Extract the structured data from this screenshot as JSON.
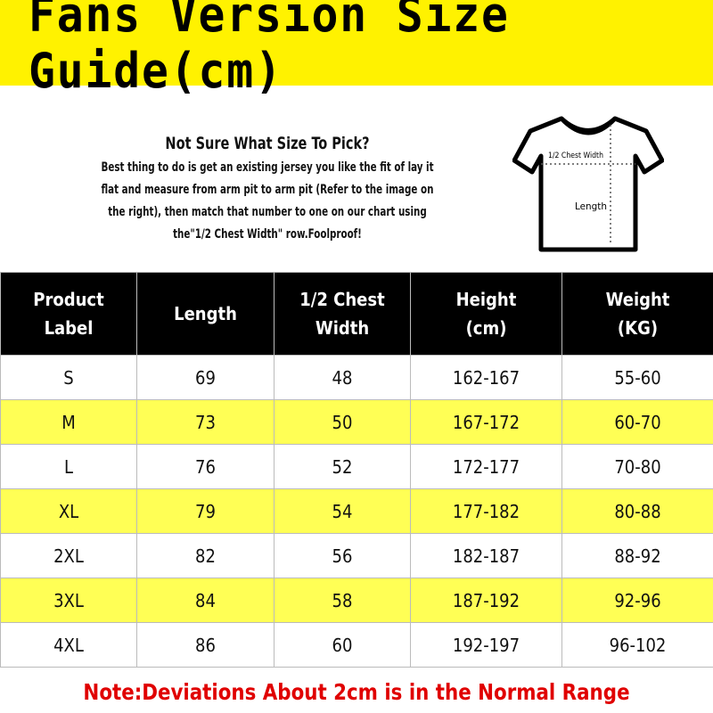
{
  "title": "Fans Version Size Guide(cm)",
  "colors": {
    "banner": "#fff200",
    "row_highlight": "#ffff55",
    "header_bg": "#000000",
    "note": "#e00000"
  },
  "intro": {
    "heading": "Not Sure What Size To Pick?",
    "body": "Best thing to do is get an existing jersey you like the fit of lay it flat and measure from arm pit to arm pit (Refer to the image on the right), then match that number to one on our chart using the\"1/2 Chest Width\" row.Foolproof!"
  },
  "diagram": {
    "chest_label": "1/2 Chest Width",
    "length_label": "Length"
  },
  "table": {
    "headers": [
      "Product\nLabel",
      "Length",
      "1/2 Chest Width",
      "Height\n(cm)",
      "Weight\n(KG)"
    ],
    "rows": [
      [
        "S",
        "69",
        "48",
        "162-167",
        "55-60"
      ],
      [
        "M",
        "73",
        "50",
        "167-172",
        "60-70"
      ],
      [
        "L",
        "76",
        "52",
        "172-177",
        "70-80"
      ],
      [
        "XL",
        "79",
        "54",
        "177-182",
        "80-88"
      ],
      [
        "2XL",
        "82",
        "56",
        "182-187",
        "88-92"
      ],
      [
        "3XL",
        "84",
        "58",
        "187-192",
        "92-96"
      ],
      [
        "4XL",
        "86",
        "60",
        "192-197",
        "96-102"
      ]
    ]
  },
  "note": "Note:Deviations About 2cm is in the Normal Range"
}
